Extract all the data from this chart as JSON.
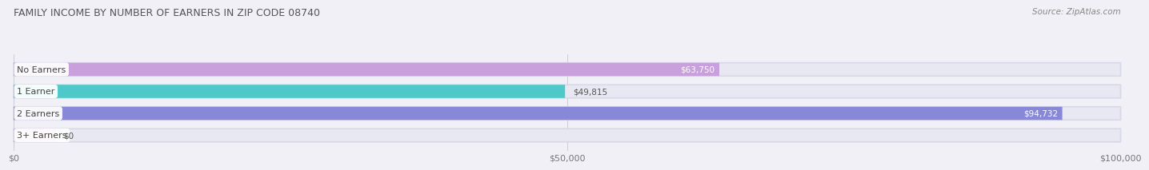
{
  "title": "FAMILY INCOME BY NUMBER OF EARNERS IN ZIP CODE 08740",
  "source": "Source: ZipAtlas.com",
  "categories": [
    "No Earners",
    "1 Earner",
    "2 Earners",
    "3+ Earners"
  ],
  "values": [
    63750,
    49815,
    94732,
    0
  ],
  "bar_colors": [
    "#c9a0dc",
    "#4ec9c9",
    "#8888d8",
    "#f4a0be"
  ],
  "xlim": [
    0,
    100000
  ],
  "xticks": [
    0,
    50000,
    100000
  ],
  "xticklabels": [
    "$0",
    "$50,000",
    "$100,000"
  ],
  "value_labels": [
    "$63,750",
    "$49,815",
    "$94,732",
    "$0"
  ],
  "value_inside": [
    true,
    false,
    true,
    false
  ],
  "bg_color": "#f0f0f6",
  "bar_bg_color": "#e8e8f2",
  "bar_border_color": "#d8d8e8",
  "title_fontsize": 9,
  "source_fontsize": 7.5,
  "tick_fontsize": 8,
  "cat_fontsize": 8,
  "value_fontsize": 7.5
}
